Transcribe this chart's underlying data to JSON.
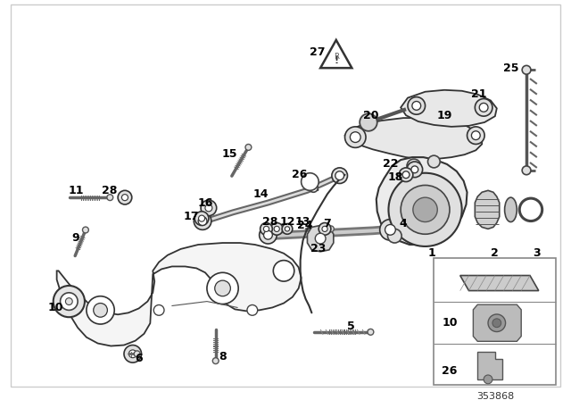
{
  "fig_width": 6.4,
  "fig_height": 4.48,
  "dpi": 100,
  "bg_color": "#ffffff",
  "part_number": "353868",
  "line_color": "#2a2a2a",
  "gray1": "#555555",
  "gray2": "#888888",
  "gray3": "#bbbbbb",
  "light_gray": "#e0e0e0",
  "mid_gray": "#999999"
}
